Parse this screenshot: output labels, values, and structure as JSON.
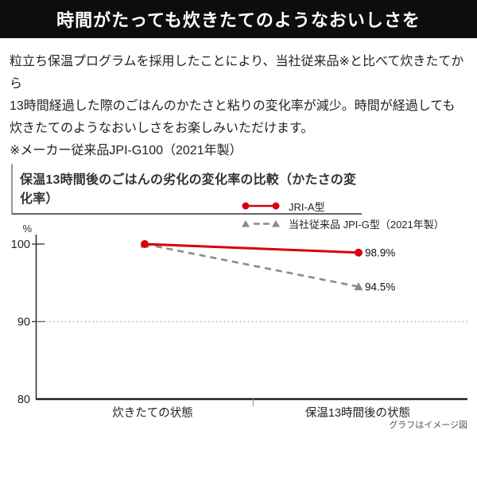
{
  "header": {
    "title": "時間がたっても炊きたてのようなおいしさを"
  },
  "intro": {
    "lines": [
      "粒立ち保温プログラムを採用したことにより、当社従来品※と比べて炊きたてから",
      "13時間経過した際のごはんのかたさと粘りの変化率が減少。時間が経過しても",
      "炊きたてのようなおいしさをお楽しみいただけます。"
    ],
    "note": "※メーカー従来品JPI-G100（2021年製）"
  },
  "chart_data": {
    "type": "line",
    "title": "保温13時間後のごはんの劣化の変化率の比較（かたさの変化率）",
    "ylabel": "%",
    "categories": [
      "炊きたての状態",
      "保温13時間後の状態"
    ],
    "series": [
      {
        "name": "JRI-A型",
        "values": [
          100,
          98.9
        ],
        "color": "#d7000f",
        "line_style": "solid",
        "marker": "circle",
        "end_label": "98.9%"
      },
      {
        "name": "当社従来品 JPI-G型（2021年製）",
        "values": [
          100,
          94.5
        ],
        "color": "#8a8a8a",
        "line_style": "dashed",
        "marker": "triangle",
        "end_label": "94.5%"
      }
    ],
    "yticks": [
      100,
      90,
      80
    ],
    "ylim": [
      80,
      102
    ],
    "grid_y": [
      90
    ],
    "legend_position": "top-right",
    "grid": "dotted-at-90-only",
    "note": "グラフはイメージ図"
  },
  "colors": {
    "header_bg": "#0d0d0d",
    "accent_red": "#d7000f",
    "series_gray": "#8a8a8a",
    "axis": "#222222",
    "grid": "#b3b3b3"
  }
}
